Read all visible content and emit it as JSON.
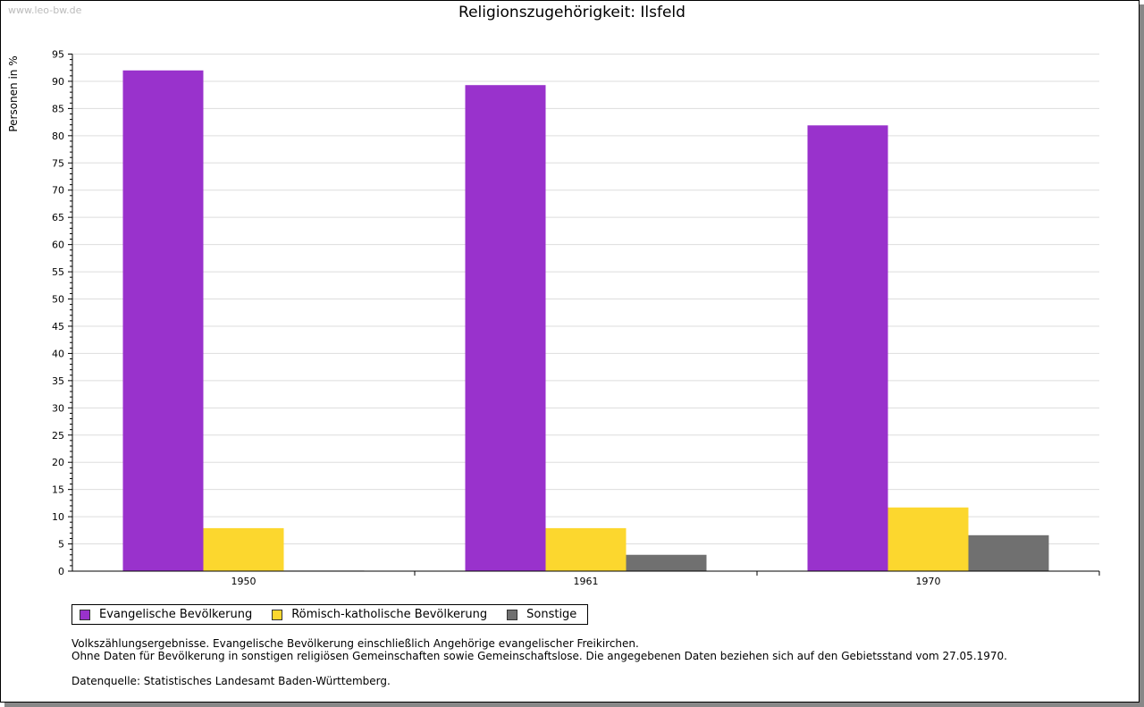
{
  "watermark": "www.leo-bw.de",
  "chart_data": {
    "type": "bar",
    "title": "Religionszugehörigkeit: Ilsfeld",
    "ylabel": "Personen in %",
    "xlabel": "",
    "ylim": [
      0,
      95
    ],
    "yticks": [
      0,
      5,
      10,
      15,
      20,
      25,
      30,
      35,
      40,
      45,
      50,
      55,
      60,
      65,
      70,
      75,
      80,
      85,
      90,
      95
    ],
    "categories": [
      "1950",
      "1961",
      "1970"
    ],
    "series": [
      {
        "name": "Evangelische Bevölkerung",
        "color": "#9932cc",
        "values": [
          92.0,
          89.3,
          81.9
        ]
      },
      {
        "name": "Römisch-katholische Bevölkerung",
        "color": "#fcd72e",
        "values": [
          7.9,
          7.9,
          11.7
        ]
      },
      {
        "name": "Sonstige",
        "color": "#707070",
        "values": [
          0.1,
          3.0,
          6.6
        ]
      }
    ],
    "grid": true,
    "legend": "bottom-left"
  },
  "notes": [
    "Volkszählungsergebnisse. Evangelische Bevölkerung einschließlich Angehörige evangelischer Freikirchen.",
    "Ohne Daten für Bevölkerung in sonstigen religiösen Gemeinschaften sowie Gemeinschaftslose. Die angegebenen Daten beziehen sich auf den Gebietsstand vom 27.05.1970.",
    "Datenquelle: Statistisches Landesamt Baden-Württemberg."
  ]
}
